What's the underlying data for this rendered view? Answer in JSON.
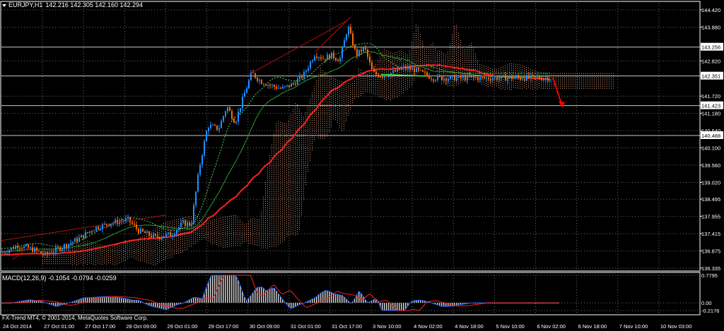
{
  "header": {
    "symbol": "EURJPY,H1",
    "ohlc": "142.216 142.305 142.160 142.294"
  },
  "macd": {
    "label": "MACD(12,26,9) -0.1054 -0.0794 -0.0259"
  },
  "copyright": "FX-Trend MT4, © 2001-2014, MetaQuotes Software Corp.",
  "price_axis": {
    "labels": [
      "144.420",
      "143.880",
      "143.256",
      "142.820",
      "142.351",
      "141.720",
      "141.423",
      "141.180",
      "140.640",
      "140.488",
      "140.100",
      "139.560",
      "139.020",
      "138.495",
      "137.955",
      "137.415",
      "136.875",
      "136.335"
    ],
    "highlighted": [
      "143.256",
      "142.351",
      "141.423",
      "140.488"
    ]
  },
  "macd_axis": {
    "labels": [
      "0.7795",
      "0.00",
      "-0.2176"
    ]
  },
  "time_axis": {
    "labels": [
      "24 Oct 2014",
      "27 Oct 01:00",
      "27 Oct 17:00",
      "28 Oct 09:00",
      "29 Oct 01:00",
      "29 Oct 17:00",
      "30 Oct 09:00",
      "31 Oct 01:00",
      "31 Oct 17:00",
      "3 Nov 10:00",
      "4 Nov 02:00",
      "4 Nov 18:00",
      "5 Nov 10:00",
      "6 Nov 02:00",
      "6 Nov 18:00",
      "7 Nov 10:00",
      "10 Nov 03:00"
    ]
  },
  "colors": {
    "bull": "#1e90ff",
    "bear": "#ff6a00",
    "ma_slow": "#ff2020",
    "ma_fast": "#2e9a2e",
    "cloud": "#e0a080",
    "grid": "#6a6a6a",
    "axis_text": "#ffffff",
    "level_line": "#c8c8c8"
  },
  "chart_data": {
    "type": "candlestick",
    "symbol": "EURJPY",
    "timeframe": "H1",
    "ylim": [
      136.335,
      144.42
    ],
    "horizontal_levels": [
      143.256,
      142.351,
      141.423,
      140.488
    ],
    "macd_ylim": [
      -0.2176,
      0.7795
    ],
    "macd_params": [
      12,
      26,
      9
    ],
    "macd_values": {
      "main": -0.1054,
      "signal": -0.0794,
      "histogram": -0.0259
    },
    "price_path": [
      {
        "t": 0.0,
        "p": 136.8
      },
      {
        "t": 0.03,
        "p": 137.05
      },
      {
        "t": 0.06,
        "p": 136.9
      },
      {
        "t": 0.08,
        "p": 136.75
      },
      {
        "t": 0.11,
        "p": 137.0
      },
      {
        "t": 0.14,
        "p": 137.25
      },
      {
        "t": 0.17,
        "p": 137.6
      },
      {
        "t": 0.2,
        "p": 137.75
      },
      {
        "t": 0.23,
        "p": 137.85
      },
      {
        "t": 0.25,
        "p": 137.5
      },
      {
        "t": 0.28,
        "p": 137.3
      },
      {
        "t": 0.31,
        "p": 137.4
      },
      {
        "t": 0.33,
        "p": 137.75
      },
      {
        "t": 0.345,
        "p": 137.7
      },
      {
        "t": 0.36,
        "p": 139.5
      },
      {
        "t": 0.375,
        "p": 140.8
      },
      {
        "t": 0.395,
        "p": 140.7
      },
      {
        "t": 0.41,
        "p": 141.4
      },
      {
        "t": 0.425,
        "p": 140.9
      },
      {
        "t": 0.44,
        "p": 141.7
      },
      {
        "t": 0.455,
        "p": 142.45
      },
      {
        "t": 0.47,
        "p": 142.2
      },
      {
        "t": 0.49,
        "p": 142.05
      },
      {
        "t": 0.51,
        "p": 141.95
      },
      {
        "t": 0.53,
        "p": 142.1
      },
      {
        "t": 0.55,
        "p": 142.4
      },
      {
        "t": 0.57,
        "p": 143.05
      },
      {
        "t": 0.585,
        "p": 142.9
      },
      {
        "t": 0.6,
        "p": 143.0
      },
      {
        "t": 0.615,
        "p": 142.85
      },
      {
        "t": 0.63,
        "p": 143.9
      },
      {
        "t": 0.645,
        "p": 143.0
      },
      {
        "t": 0.66,
        "p": 143.25
      },
      {
        "t": 0.675,
        "p": 142.45
      },
      {
        "t": 0.69,
        "p": 142.35
      },
      {
        "t": 0.71,
        "p": 142.45
      },
      {
        "t": 0.73,
        "p": 142.6
      },
      {
        "t": 0.75,
        "p": 142.55
      },
      {
        "t": 0.77,
        "p": 142.4
      },
      {
        "t": 0.785,
        "p": 142.29
      }
    ],
    "forecast_arrow": {
      "from": 142.294,
      "to": 141.423
    }
  }
}
